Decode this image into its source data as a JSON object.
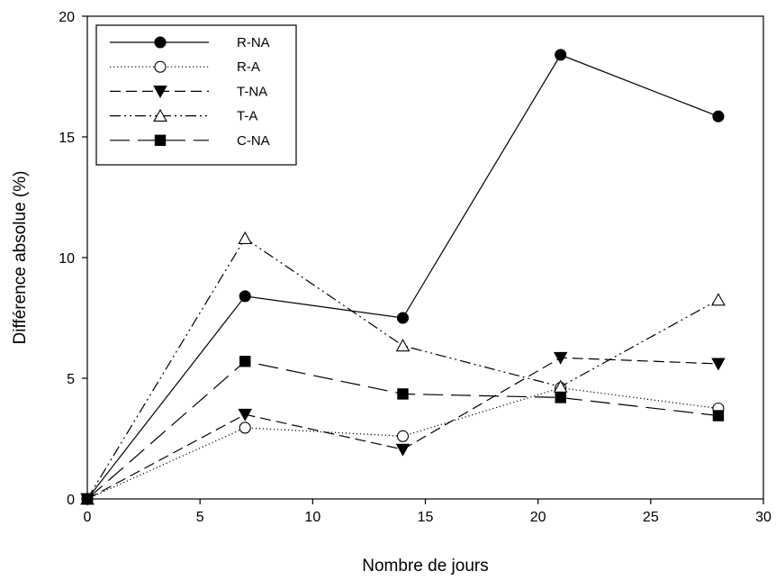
{
  "chart_data": {
    "type": "line",
    "title": "",
    "xlabel": "Nombre de jours",
    "ylabel": "Différence absolue (%)",
    "xlim": [
      0,
      30
    ],
    "ylim": [
      0,
      20
    ],
    "xticks": [
      0,
      5,
      10,
      15,
      20,
      25,
      30
    ],
    "yticks": [
      0,
      5,
      10,
      15,
      20
    ],
    "grid": false,
    "legend_position": "top-left",
    "x": [
      0,
      7,
      14,
      21,
      28
    ],
    "series": [
      {
        "name": "R-NA",
        "values": [
          0,
          8.4,
          7.5,
          18.4,
          15.85
        ],
        "marker": "circle-filled",
        "line_style": "solid"
      },
      {
        "name": "R-A",
        "values": [
          0,
          2.95,
          2.6,
          4.6,
          3.75
        ],
        "marker": "circle-open",
        "line_style": "dotted"
      },
      {
        "name": "T-NA",
        "values": [
          0,
          3.5,
          2.05,
          5.85,
          5.6
        ],
        "marker": "triangle-down-filled",
        "line_style": "dashed"
      },
      {
        "name": "T-A",
        "values": [
          0,
          10.8,
          6.35,
          4.65,
          8.25
        ],
        "marker": "triangle-up-open",
        "line_style": "dash-dot-dot"
      },
      {
        "name": "C-NA",
        "values": [
          0,
          5.7,
          4.35,
          4.2,
          3.45
        ],
        "marker": "square-filled",
        "line_style": "long-dash"
      }
    ],
    "colors": {
      "line": "#000000",
      "background": "#ffffff"
    }
  }
}
